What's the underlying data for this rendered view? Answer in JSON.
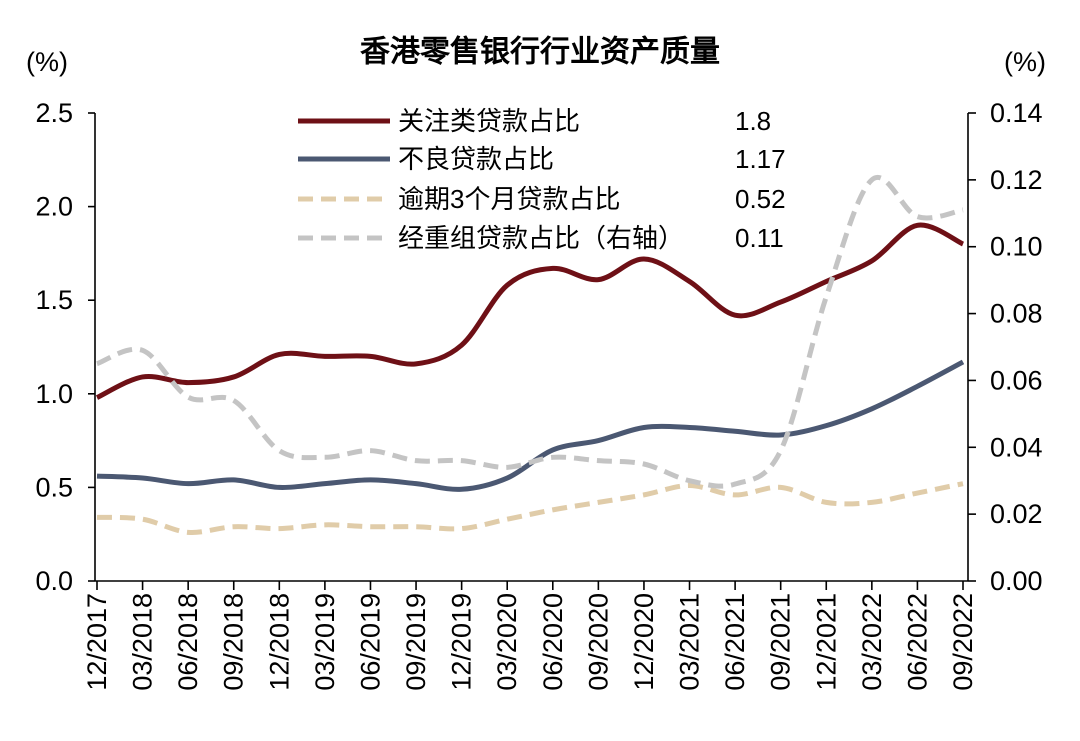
{
  "chart_data": {
    "type": "line",
    "title": "香港零售银行行业资产质量",
    "xlabel": "",
    "ylabel": "(%)",
    "ylabel_right": "(%)",
    "ylim": [
      0,
      2.5
    ],
    "ylim_right": [
      0,
      0.14
    ],
    "y_ticks": [
      "0.0",
      "0.5",
      "1.0",
      "1.5",
      "2.0",
      "2.5"
    ],
    "y_ticks_right": [
      "0.00",
      "0.02",
      "0.04",
      "0.06",
      "0.08",
      "0.10",
      "0.12",
      "0.14"
    ],
    "grid": false,
    "legend_position": "top-center",
    "categories": [
      "12/2017",
      "03/2018",
      "06/2018",
      "09/2018",
      "12/2018",
      "03/2019",
      "06/2019",
      "09/2019",
      "12/2019",
      "03/2020",
      "06/2020",
      "09/2020",
      "12/2020",
      "03/2021",
      "06/2021",
      "09/2021",
      "12/2021",
      "03/2022",
      "06/2022",
      "09/2022"
    ],
    "series": [
      {
        "name": "关注类贷款占比",
        "axis": "left",
        "line_style": "solid",
        "color": "#6e1016",
        "legend_value": "1.8",
        "values": [
          0.98,
          1.09,
          1.06,
          1.09,
          1.21,
          1.2,
          1.2,
          1.16,
          1.26,
          1.58,
          1.67,
          1.61,
          1.72,
          1.6,
          1.42,
          1.49,
          1.6,
          1.71,
          1.9,
          1.8
        ]
      },
      {
        "name": "不良贷款占比",
        "axis": "left",
        "line_style": "solid",
        "color": "#4b5872",
        "legend_value": "1.17",
        "values": [
          0.56,
          0.55,
          0.52,
          0.54,
          0.5,
          0.52,
          0.54,
          0.52,
          0.49,
          0.55,
          0.7,
          0.75,
          0.82,
          0.82,
          0.8,
          0.78,
          0.83,
          0.92,
          1.04,
          1.17
        ]
      },
      {
        "name": "逾期3个月贷款占比",
        "axis": "left",
        "line_style": "dashed",
        "color": "#e0cca9",
        "legend_value": "0.52",
        "values": [
          0.34,
          0.33,
          0.26,
          0.29,
          0.28,
          0.3,
          0.29,
          0.29,
          0.28,
          0.33,
          0.38,
          0.42,
          0.46,
          0.51,
          0.46,
          0.5,
          0.42,
          0.42,
          0.47,
          0.52
        ]
      },
      {
        "name": "经重组贷款占比（右轴）",
        "axis": "right",
        "line_style": "dashed",
        "color": "#c4c4c4",
        "legend_value": "0.11",
        "values": [
          0.065,
          0.069,
          0.055,
          0.054,
          0.039,
          0.037,
          0.039,
          0.036,
          0.036,
          0.034,
          0.037,
          0.036,
          0.035,
          0.03,
          0.029,
          0.039,
          0.085,
          0.12,
          0.109,
          0.111
        ]
      }
    ]
  }
}
